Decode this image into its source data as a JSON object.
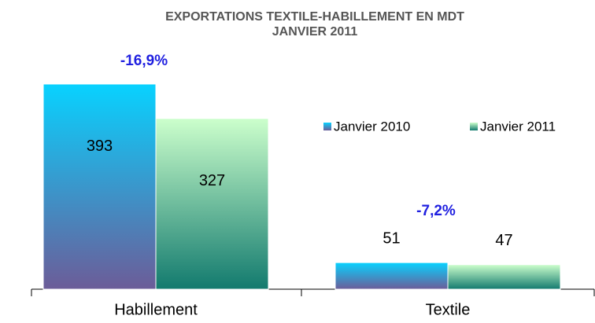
{
  "chart_data": {
    "type": "bar",
    "title": [
      "EXPORTATIONS TEXTILE-HABILLEMENT EN MDT",
      "JANVIER 2011"
    ],
    "categories": [
      "Habillement",
      "Textile"
    ],
    "series": [
      {
        "name": "Janvier 2010",
        "colors": [
          "#08d2ff",
          "#6c5c98"
        ],
        "values": [
          393,
          51
        ]
      },
      {
        "name": "Janvier 2011",
        "colors": [
          "#ccffcc",
          "#127a6e"
        ],
        "values": [
          327,
          47
        ]
      }
    ],
    "annotations": [
      "-16,9%",
      "-7,2%"
    ],
    "annotation_color": "#2020e0",
    "ylim": [
      0,
      420
    ],
    "legend": "right"
  }
}
